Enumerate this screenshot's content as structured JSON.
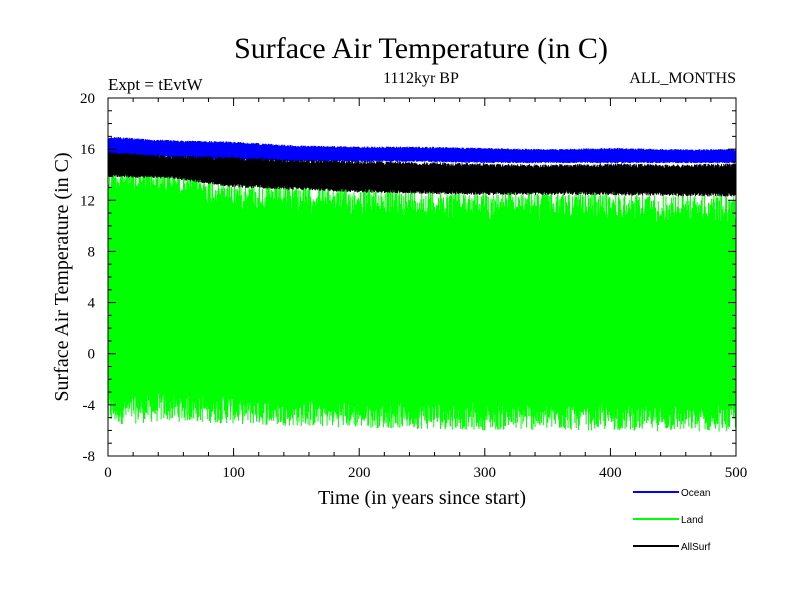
{
  "chart_data": {
    "type": "line",
    "title": "Surface Air Temperature (in C)",
    "subtitle_left": "Expt = tEvtW",
    "subtitle_center": "1112kyr BP",
    "subtitle_right": "ALL_MONTHS",
    "xlabel": "Time (in years since start)",
    "ylabel": "Surface Air Temperature (in C)",
    "xlim": [
      0,
      500
    ],
    "ylim": [
      -8,
      20
    ],
    "x_ticks": [
      "0",
      "100",
      "200",
      "300",
      "400",
      "500"
    ],
    "y_ticks": [
      "-8",
      "-4",
      "0",
      "4",
      "8",
      "12",
      "16",
      "20"
    ],
    "grid": false,
    "legend_position": "bottom-right",
    "series": [
      {
        "name": "Ocean",
        "color": "#0000ff",
        "x": [
          0,
          50,
          100,
          150,
          200,
          250,
          300,
          350,
          400,
          450,
          500
        ],
        "upper": [
          17.0,
          16.7,
          16.6,
          16.3,
          16.2,
          16.2,
          16.1,
          16.0,
          16.1,
          16.0,
          16.0
        ],
        "lower": [
          15.3,
          15.3,
          15.1,
          15.0,
          15.0,
          15.0,
          14.9,
          14.9,
          14.9,
          14.9,
          14.9
        ]
      },
      {
        "name": "Land",
        "color": "#00ff00",
        "x": [
          0,
          50,
          100,
          150,
          200,
          250,
          300,
          350,
          400,
          450,
          500
        ],
        "upper": [
          14.8,
          14.6,
          13.5,
          13.3,
          13.0,
          12.9,
          12.7,
          12.7,
          12.6,
          12.5,
          12.5
        ],
        "lower": [
          -5.6,
          -5.3,
          -5.5,
          -5.7,
          -5.8,
          -5.9,
          -6.0,
          -6.0,
          -6.0,
          -6.1,
          -6.1
        ]
      },
      {
        "name": "AllSurf",
        "color": "#000000",
        "x": [
          0,
          50,
          100,
          150,
          200,
          250,
          300,
          350,
          400,
          450,
          500
        ],
        "upper": [
          15.8,
          15.5,
          15.4,
          15.2,
          15.1,
          15.0,
          14.9,
          14.8,
          14.9,
          14.8,
          14.9
        ],
        "lower": [
          13.8,
          13.7,
          13.0,
          12.8,
          12.6,
          12.5,
          12.4,
          12.4,
          12.4,
          12.3,
          12.3
        ]
      }
    ]
  }
}
